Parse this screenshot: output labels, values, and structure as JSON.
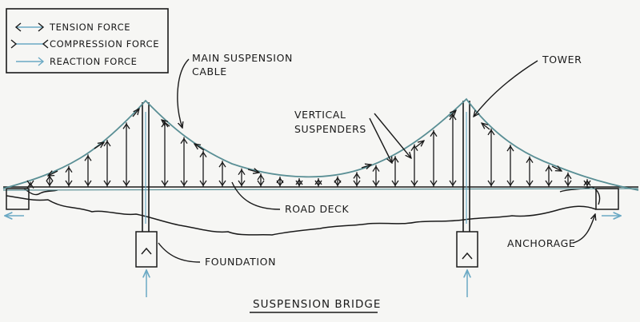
{
  "legend": {
    "items": [
      {
        "label": "TENSION FORCE",
        "arrow": "tension"
      },
      {
        "label": "COMPRESSION FORCE",
        "arrow": "compression"
      },
      {
        "label": "REACTION FORCE",
        "arrow": "reaction"
      }
    ]
  },
  "labels": {
    "main_cable_line1": "MAIN SUSPENSION",
    "main_cable_line2": "CABLE",
    "tower": "TOWER",
    "suspenders_line1": "VERTICAL",
    "suspenders_line2": "SUSPENDERS",
    "road_deck": "ROAD DECK",
    "foundation": "FOUNDATION",
    "anchorage": "ANCHORAGE"
  },
  "title": "SUSPENSION BRIDGE",
  "colors": {
    "ink": "#1a1a1a",
    "cable": "#5a8f95",
    "arrow_blue": "#6aa9c4",
    "paper": "#f6f6f4"
  }
}
